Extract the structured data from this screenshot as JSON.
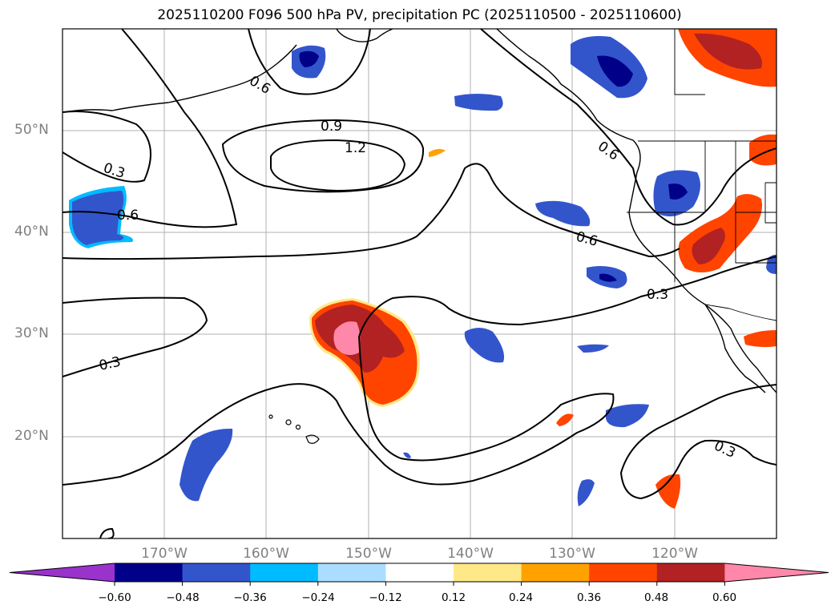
{
  "title": "2025110200 F096 500 hPa PV, precipitation PC (2025110500 - 2025110600)",
  "lat_labels": [
    "50°N",
    "40°N",
    "30°N",
    "20°N"
  ],
  "lon_labels": [
    "170°W",
    "160°W",
    "150°W",
    "140°W",
    "130°W",
    "120°W"
  ],
  "contour_labels": [
    "0.9",
    "1.2",
    "0.3",
    "0.6",
    "0.6",
    "0.6",
    "0.6",
    "0.3",
    "0.3",
    "0.3"
  ],
  "colorbar": {
    "ticks": [
      "−0.60",
      "−0.48",
      "−0.36",
      "−0.24",
      "−0.12",
      "0.12",
      "0.24",
      "0.36",
      "0.48",
      "0.60"
    ],
    "colors": [
      "#9933cc",
      "#000088",
      "#3355cc",
      "#00bbff",
      "#aaddff",
      "#ffffff",
      "#ffe888",
      "#ffa200",
      "#ff4400",
      "#b22222",
      "#ff88aa"
    ]
  }
}
